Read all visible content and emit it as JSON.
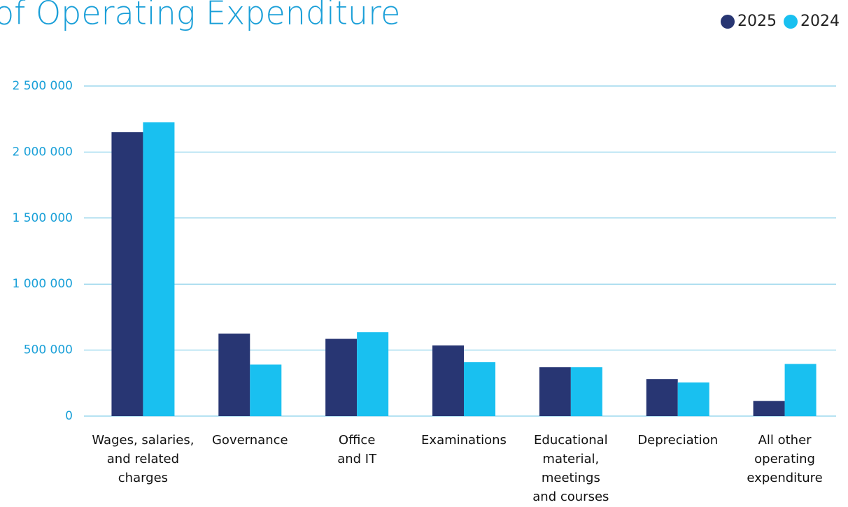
{
  "chart_data": {
    "type": "bar",
    "title": "of Operating Expenditure",
    "categories": [
      [
        "Wages, salaries,",
        "and related",
        "charges"
      ],
      [
        "Governance"
      ],
      [
        "Office",
        "and IT"
      ],
      [
        "Examinations"
      ],
      [
        "Educational",
        "material,",
        "meetings",
        "and courses"
      ],
      [
        "Depreciation"
      ],
      [
        "All other",
        "operating",
        "expenditure"
      ]
    ],
    "series": [
      {
        "name": "2025",
        "color": "#283673",
        "values": [
          2150000,
          625000,
          585000,
          535000,
          370000,
          280000,
          115000
        ]
      },
      {
        "name": "2024",
        "color": "#19c0f0",
        "values": [
          2225000,
          390000,
          635000,
          408000,
          370000,
          255000,
          395000
        ]
      }
    ],
    "ylim": [
      0,
      2500000
    ],
    "yticks": [
      0,
      {
        "value": 500000,
        "label": "500 000"
      },
      {
        "value": 1000000,
        "label": "1 000 000"
      },
      {
        "value": 1500000,
        "label": "1 500 000"
      },
      {
        "value": 2000000,
        "label": "2 000 000"
      },
      {
        "value": 2500000,
        "label": "2 500 000"
      }
    ],
    "grid": true,
    "legend": "top-right"
  }
}
